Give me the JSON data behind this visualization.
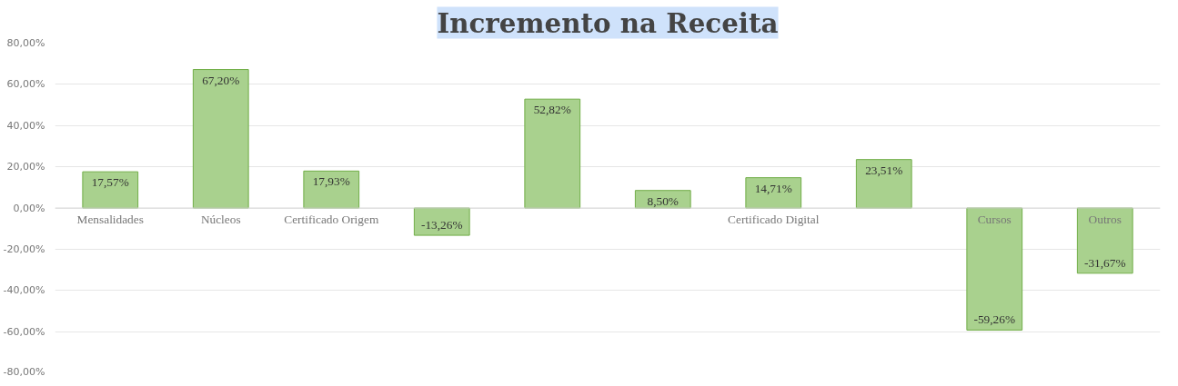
{
  "chart_data": {
    "type": "bar",
    "title": "Incremento na Receita",
    "categories": [
      "Mensalidades",
      "Núcleos",
      "Certificado Origem",
      null,
      null,
      null,
      "Certificado Digital",
      null,
      "Cursos",
      "Outros"
    ],
    "values": [
      17.57,
      67.2,
      17.93,
      -13.26,
      52.82,
      8.5,
      14.71,
      23.51,
      -59.26,
      -31.67
    ],
    "value_labels": [
      "17,57%",
      "67,20%",
      "17,93%",
      "-13,26%",
      "52,82%",
      "8,50%",
      "14,71%",
      "23,51%",
      "-59,26%",
      "-31,67%"
    ],
    "color": "#a9d18e",
    "ylim": [
      -80,
      80
    ],
    "yticks": [
      {
        "value": -80,
        "label": "-80,00%"
      },
      {
        "value": -60,
        "label": "-60,00%"
      },
      {
        "value": -40,
        "label": "-40,00%"
      },
      {
        "value": -20,
        "label": "-20,00%"
      },
      {
        "value": 0,
        "label": "0,00%"
      },
      {
        "value": 20,
        "label": "20,00%"
      },
      {
        "value": 40,
        "label": "40,00%"
      },
      {
        "value": 60,
        "label": "60,00%"
      },
      {
        "value": 80,
        "label": "80,00%"
      }
    ],
    "grid": "y"
  }
}
